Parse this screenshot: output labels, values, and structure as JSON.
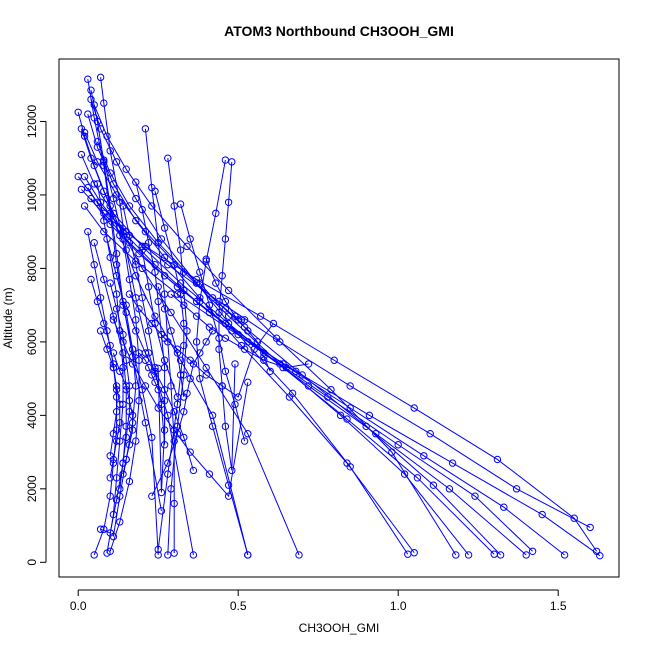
{
  "chart_data": {
    "type": "line",
    "title": "ATOM3 Northbound CH3OOH_GMI",
    "xlabel": "CH3OOH_GMI",
    "ylabel": "Altitude (m)",
    "xlim": [
      -0.06,
      1.69
    ],
    "ylim": [
      -400,
      13700
    ],
    "x_ticks": [
      0.0,
      0.5,
      1.0,
      1.5
    ],
    "x_tick_labels": [
      "0.0",
      "0.5",
      "1.0",
      "1.5"
    ],
    "y_ticks": [
      0,
      2000,
      4000,
      6000,
      8000,
      10000,
      12000
    ],
    "y_tick_labels": [
      "0",
      "2000",
      "4000",
      "6000",
      "8000",
      "10000",
      "12000"
    ],
    "color": "#0000ff",
    "marker": "open-circle",
    "grid": false,
    "series": [
      {
        "x": [
          0.03,
          0.05,
          0.08,
          0.1,
          0.12,
          0.14,
          0.17,
          0.2,
          0.23,
          0.25
        ],
        "y": [
          13150,
          12100,
          10800,
          9500,
          8100,
          7000,
          5800,
          4700,
          3400,
          200
        ]
      },
      {
        "x": [
          0.07,
          0.08,
          0.1,
          0.13,
          0.15,
          0.18,
          0.22,
          0.28,
          0.36
        ],
        "y": [
          13200,
          12500,
          11200,
          9800,
          8500,
          7200,
          5700,
          4000,
          200
        ]
      },
      {
        "x": [
          0.04,
          0.06,
          0.08,
          0.1,
          0.12,
          0.14,
          0.17,
          0.21,
          0.26
        ],
        "y": [
          12850,
          12000,
          10900,
          9700,
          8400,
          7100,
          5600,
          3800,
          1400
        ]
      },
      {
        "x": [
          0.0,
          0.02,
          0.05,
          0.09,
          0.13,
          0.18,
          0.24,
          0.32,
          0.42,
          0.53
        ],
        "y": [
          12250,
          11600,
          10800,
          9900,
          8900,
          7800,
          6700,
          5500,
          4000,
          200
        ]
      },
      {
        "x": [
          0.01,
          0.04,
          0.08,
          0.13,
          0.2,
          0.29,
          0.4,
          0.53,
          0.69
        ],
        "y": [
          11800,
          11000,
          10100,
          9100,
          8000,
          6800,
          5300,
          3500,
          200
        ]
      },
      {
        "x": [
          0.04,
          0.07,
          0.12,
          0.18,
          0.26,
          0.37,
          0.5,
          0.67,
          0.85,
          1.03
        ],
        "y": [
          12600,
          11800,
          10900,
          9900,
          8800,
          7600,
          6200,
          4600,
          2600,
          220
        ]
      },
      {
        "x": [
          0.03,
          0.06,
          0.11,
          0.18,
          0.27,
          0.38,
          0.51,
          0.66,
          0.84,
          1.05
        ],
        "y": [
          12200,
          11300,
          10300,
          9300,
          8300,
          7200,
          5900,
          4500,
          2700,
          260
        ]
      },
      {
        "x": [
          0.05,
          0.09,
          0.15,
          0.23,
          0.34,
          0.47,
          0.62,
          0.79,
          0.98,
          1.18
        ],
        "y": [
          12450,
          11600,
          10700,
          9700,
          8600,
          7400,
          6100,
          4700,
          3000,
          200
        ]
      },
      {
        "x": [
          0.02,
          0.06,
          0.12,
          0.21,
          0.33,
          0.47,
          0.63,
          0.82,
          1.02,
          1.22
        ],
        "y": [
          11700,
          10900,
          10000,
          9000,
          7900,
          6700,
          5400,
          4000,
          2400,
          200
        ]
      },
      {
        "x": [
          0.01,
          0.05,
          0.11,
          0.2,
          0.32,
          0.47,
          0.64,
          0.84,
          1.06,
          1.3
        ],
        "y": [
          11100,
          10300,
          9500,
          8600,
          7600,
          6500,
          5300,
          3900,
          2300,
          220
        ]
      },
      {
        "x": [
          0.06,
          0.1,
          0.16,
          0.25,
          0.37,
          0.52,
          0.7,
          0.9,
          1.11,
          1.32
        ],
        "y": [
          11450,
          10600,
          9700,
          8700,
          7600,
          6400,
          5100,
          3700,
          2100,
          200
        ]
      },
      {
        "x": [
          0.02,
          0.07,
          0.14,
          0.24,
          0.37,
          0.53,
          0.72,
          0.93,
          1.16,
          1.4
        ],
        "y": [
          10500,
          9800,
          9000,
          8100,
          7100,
          6000,
          4800,
          3500,
          2000,
          200
        ]
      },
      {
        "x": [
          0.03,
          0.08,
          0.16,
          0.27,
          0.41,
          0.58,
          0.78,
          1.0,
          1.24,
          1.42
        ],
        "y": [
          10200,
          9500,
          8700,
          7800,
          6800,
          5700,
          4500,
          3200,
          1800,
          300
        ]
      },
      {
        "x": [
          0.04,
          0.1,
          0.19,
          0.31,
          0.46,
          0.64,
          0.85,
          1.08,
          1.33,
          1.52
        ],
        "y": [
          9900,
          9200,
          8400,
          7500,
          6500,
          5400,
          4200,
          2900,
          1500,
          200
        ]
      },
      {
        "x": [
          0.0,
          0.06,
          0.15,
          0.28,
          0.44,
          0.63,
          0.85,
          1.1,
          1.37,
          1.6
        ],
        "y": [
          10500,
          9800,
          9000,
          8100,
          7100,
          6000,
          4800,
          3500,
          2000,
          950
        ]
      },
      {
        "x": [
          0.02,
          0.08,
          0.18,
          0.31,
          0.48,
          0.68,
          0.91,
          1.17,
          1.45,
          1.63
        ],
        "y": [
          9700,
          9000,
          8200,
          7300,
          6300,
          5200,
          4000,
          2700,
          1300,
          180
        ]
      },
      {
        "x": [
          0.01,
          0.09,
          0.21,
          0.37,
          0.57,
          0.8,
          1.05,
          1.31,
          1.55,
          1.62
        ],
        "y": [
          10150,
          9400,
          8600,
          7700,
          6700,
          5500,
          4200,
          2800,
          1200,
          300
        ]
      },
      {
        "x": [
          0.08,
          0.11,
          0.14,
          0.16,
          0.18,
          0.19,
          0.19,
          0.18,
          0.16,
          0.13,
          0.1
        ],
        "y": [
          10950,
          9900,
          8800,
          7700,
          6600,
          5500,
          4400,
          3300,
          2200,
          1100,
          300
        ]
      },
      {
        "x": [
          0.06,
          0.08,
          0.1,
          0.12,
          0.13,
          0.14,
          0.14,
          0.13,
          0.12,
          0.11,
          0.09
        ],
        "y": [
          10300,
          9300,
          8300,
          7300,
          6300,
          5300,
          4300,
          3300,
          2300,
          1300,
          250
        ]
      },
      {
        "x": [
          0.03,
          0.05,
          0.07,
          0.09,
          0.11,
          0.12,
          0.12,
          0.11,
          0.1,
          0.08,
          0.05
        ],
        "y": [
          9000,
          8100,
          7200,
          6300,
          5400,
          4500,
          3600,
          2700,
          1800,
          900,
          200
        ]
      },
      {
        "x": [
          0.05,
          0.08,
          0.11,
          0.14,
          0.15,
          0.15,
          0.14,
          0.12,
          0.1,
          0.07
        ],
        "y": [
          8700,
          7700,
          6700,
          5700,
          4700,
          3700,
          2700,
          1700,
          800,
          900
        ]
      },
      {
        "x": [
          0.09,
          0.12,
          0.15,
          0.17,
          0.18,
          0.17,
          0.15,
          0.13,
          0.11
        ],
        "y": [
          8800,
          7800,
          6800,
          5800,
          4800,
          3800,
          2800,
          1800,
          700
        ]
      },
      {
        "x": [
          0.21,
          0.23,
          0.25,
          0.27,
          0.28,
          0.29,
          0.3,
          0.3,
          0.3
        ],
        "y": [
          11800,
          10200,
          8700,
          7300,
          6000,
          4800,
          3300,
          1600,
          250
        ]
      },
      {
        "x": [
          0.28,
          0.3,
          0.32,
          0.33,
          0.34,
          0.33,
          0.31,
          0.29,
          0.28
        ],
        "y": [
          11000,
          9700,
          8500,
          7400,
          6300,
          5100,
          3700,
          2000,
          200
        ]
      },
      {
        "x": [
          0.46,
          0.43,
          0.4,
          0.38,
          0.37,
          0.38,
          0.42,
          0.47,
          0.53
        ],
        "y": [
          10950,
          9500,
          8200,
          7100,
          6000,
          5000,
          3700,
          2100,
          200
        ]
      },
      {
        "x": [
          0.48,
          0.47,
          0.46,
          0.45,
          0.44,
          0.44,
          0.45,
          0.46,
          0.48,
          0.49
        ],
        "y": [
          10900,
          9800,
          8800,
          7800,
          6800,
          5800,
          4800,
          3700,
          2500,
          5400
        ]
      },
      {
        "x": [
          0.14,
          0.16,
          0.18,
          0.2,
          0.22,
          0.24,
          0.26,
          0.27,
          0.27
        ],
        "y": [
          9700,
          8900,
          8100,
          7200,
          6300,
          5300,
          4300,
          3200,
          4400
        ]
      },
      {
        "x": [
          0.24,
          0.27,
          0.3,
          0.32,
          0.33,
          0.33,
          0.31,
          0.28,
          0.25
        ],
        "y": [
          10100,
          9100,
          8100,
          7300,
          6500,
          5900,
          4300,
          2400,
          350
        ]
      },
      {
        "x": [
          0.18,
          0.2,
          0.22,
          0.24,
          0.25,
          0.26,
          0.27,
          0.27,
          0.26,
          0.25
        ],
        "y": [
          10350,
          9600,
          8700,
          7900,
          7100,
          6200,
          5300,
          3600,
          1900,
          5280
        ]
      },
      {
        "x": [
          0.32,
          0.35,
          0.38,
          0.41,
          0.44,
          0.46,
          0.49,
          0.52
        ],
        "y": [
          9750,
          8800,
          7900,
          7000,
          6100,
          5200,
          4300,
          3300
        ]
      },
      {
        "x": [
          0.11,
          0.14,
          0.17,
          0.21,
          0.25,
          0.3,
          0.35,
          0.41,
          0.47,
          0.53
        ],
        "y": [
          6600,
          6000,
          5400,
          4800,
          4200,
          3600,
          3000,
          2400,
          1800,
          4900
        ]
      },
      {
        "x": [
          0.15,
          0.18,
          0.21,
          0.24,
          0.27,
          0.3,
          0.33,
          0.36
        ],
        "y": [
          7000,
          6300,
          5700,
          5200,
          4700,
          4100,
          3400,
          2500
        ]
      },
      {
        "x": [
          0.16,
          0.19,
          0.23,
          0.27,
          0.31,
          0.35,
          0.4,
          0.45,
          0.5,
          0.55,
          0.61
        ],
        "y": [
          7300,
          6900,
          6500,
          6100,
          5800,
          5500,
          5100,
          4800,
          4500,
          5800,
          6500
        ]
      },
      {
        "x": [
          0.29,
          0.33,
          0.37,
          0.41,
          0.46,
          0.52,
          0.58,
          0.65,
          0.72
        ],
        "y": [
          7300,
          7000,
          6700,
          6400,
          6100,
          5800,
          5500,
          5300,
          5400
        ]
      },
      {
        "x": [
          0.38,
          0.42,
          0.46,
          0.5,
          0.53,
          0.56,
          0.58,
          0.6
        ],
        "y": [
          7600,
          7200,
          6900,
          6600,
          6300,
          6000,
          5600,
          5200
        ]
      },
      {
        "x": [
          0.4,
          0.43,
          0.46,
          0.49,
          0.51,
          0.52
        ],
        "y": [
          8250,
          7600,
          7100,
          6700,
          6600,
          6600
        ]
      },
      {
        "x": [
          0.1,
          0.12,
          0.14,
          0.15,
          0.16,
          0.16,
          0.15,
          0.14,
          0.13
        ],
        "y": [
          7600,
          6900,
          6200,
          5500,
          4800,
          4100,
          3400,
          2700,
          2000
        ]
      },
      {
        "x": [
          0.07,
          0.09,
          0.11,
          0.12,
          0.13,
          0.13,
          0.12,
          0.11,
          0.1
        ],
        "y": [
          6300,
          5800,
          5300,
          4800,
          4300,
          3800,
          3300,
          2800,
          2300
        ]
      },
      {
        "x": [
          0.04,
          0.06,
          0.08,
          0.1,
          0.11,
          0.12,
          0.12,
          0.11,
          0.1
        ],
        "y": [
          7700,
          7100,
          6500,
          5900,
          5300,
          4700,
          4100,
          3500,
          2900
        ]
      },
      {
        "x": [
          0.11,
          0.13,
          0.15,
          0.16,
          0.17,
          0.17,
          0.16,
          0.15,
          0.14
        ],
        "y": [
          5700,
          5200,
          4800,
          4400,
          4000,
          3600,
          3200,
          2800,
          2400
        ]
      },
      {
        "x": [
          0.19,
          0.21,
          0.22,
          0.23,
          0.24,
          0.25
        ],
        "y": [
          5700,
          5500,
          5300,
          5100,
          4900,
          4700
        ]
      },
      {
        "x": [
          0.2,
          0.22,
          0.24,
          0.27,
          0.31
        ],
        "y": [
          8500,
          7500,
          6500,
          5500,
          4500
        ]
      },
      {
        "x": [
          0.25,
          0.27,
          0.29,
          0.31,
          0.32,
          0.33
        ],
        "y": [
          7500,
          6900,
          6300,
          5700,
          5100,
          4500
        ]
      },
      {
        "x": [
          0.42,
          0.4,
          0.38,
          0.36,
          0.35,
          0.34,
          0.33,
          0.31,
          0.28,
          0.23
        ],
        "y": [
          6300,
          6000,
          5700,
          5400,
          5000,
          4600,
          4100,
          3500,
          2700,
          1800
        ]
      }
    ]
  }
}
